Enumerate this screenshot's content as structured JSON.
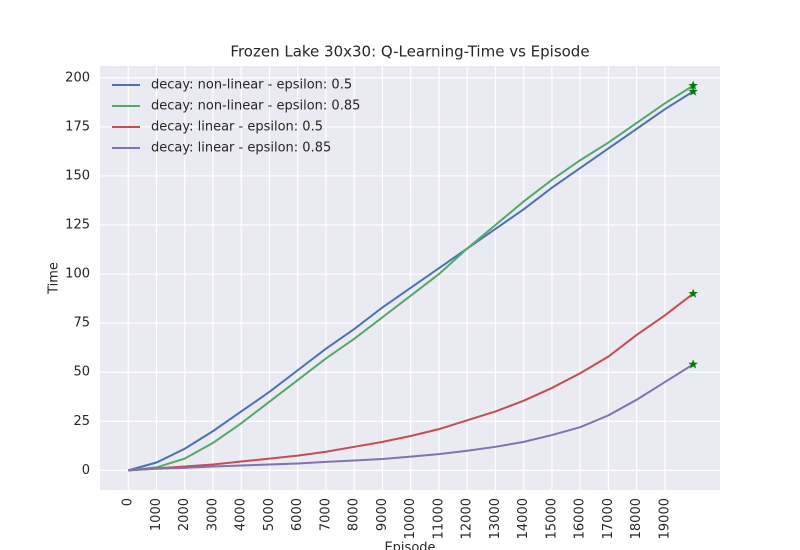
{
  "chart_data": {
    "type": "line",
    "title": "Frozen Lake 30x30: Q-Learning-Time vs Episode",
    "x_label": "Episode",
    "y_label": "Time",
    "x": [
      0,
      1000,
      2000,
      3000,
      4000,
      5000,
      6000,
      7000,
      8000,
      9000,
      10000,
      11000,
      12000,
      13000,
      14000,
      15000,
      16000,
      17000,
      18000,
      19000,
      20000
    ],
    "series": [
      {
        "name": "decay: non-linear - epsilon: 0.5",
        "color": "#4c72b0",
        "values": [
          0,
          4,
          11,
          20,
          30,
          40,
          51,
          62,
          72,
          83,
          93,
          103,
          113,
          123,
          133,
          144,
          154,
          164,
          174,
          184,
          193
        ]
      },
      {
        "name": "decay: non-linear - epsilon: 0.85",
        "color": "#55a868",
        "values": [
          0,
          1.5,
          6,
          14,
          24,
          35,
          46,
          57,
          67,
          78,
          89,
          100,
          113,
          125,
          137,
          148,
          158,
          167,
          177,
          187,
          196
        ]
      },
      {
        "name": "decay: linear - epsilon: 0.5",
        "color": "#c44e52",
        "values": [
          0,
          1,
          2,
          3,
          4.5,
          6,
          7.5,
          9.5,
          12,
          14.5,
          17.5,
          21,
          25.5,
          30,
          35.5,
          42,
          49.5,
          58,
          69,
          79,
          90
        ]
      },
      {
        "name": "decay: linear - epsilon: 0.85",
        "color": "#8172b2",
        "values": [
          0,
          0.8,
          1.3,
          2,
          2.5,
          3,
          3.5,
          4.3,
          5,
          5.8,
          7,
          8.3,
          10,
          12,
          14.5,
          18,
          22,
          28,
          36,
          45,
          54
        ]
      }
    ],
    "end_marker_color": "#008000",
    "xlim": [
      -1000,
      20950
    ],
    "ylim": [
      -10,
      206
    ],
    "xticks": [
      0,
      1000,
      2000,
      3000,
      4000,
      5000,
      6000,
      7000,
      8000,
      9000,
      10000,
      11000,
      12000,
      13000,
      14000,
      15000,
      16000,
      17000,
      18000,
      19000
    ],
    "yticks": [
      0,
      25,
      50,
      75,
      100,
      125,
      150,
      175,
      200
    ],
    "grid": true,
    "legend": "upper-left"
  }
}
